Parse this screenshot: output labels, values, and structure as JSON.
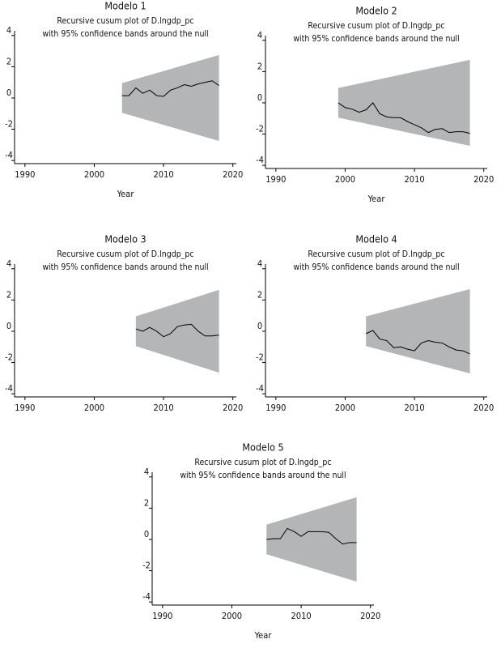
{
  "chart_data": [
    {
      "type": "line",
      "title": "Modelo 1",
      "subtitle": [
        "Recursive cusum plot of D.lngdp_pc",
        "with 95% confidence bands around the null"
      ],
      "xlabel": "Year",
      "x": [
        2004,
        2005,
        2006,
        2007,
        2008,
        2009,
        2010,
        2011,
        2012,
        2013,
        2014,
        2015,
        2016,
        2017,
        2018
      ],
      "values": [
        0.15,
        0.15,
        0.65,
        0.3,
        0.5,
        0.15,
        0.1,
        0.5,
        0.65,
        0.85,
        0.75,
        0.9,
        1.0,
        1.1,
        0.8
      ],
      "color": "#000000",
      "band_x": [
        2004,
        2018
      ],
      "band_lower": [
        -0.95,
        -2.75
      ],
      "band_upper": [
        0.95,
        2.75
      ],
      "band_color": "#b3b5b6",
      "xlim": [
        1988.5,
        2020.5
      ],
      "ylim": [
        -4.2,
        4.3
      ],
      "xticks": [
        1990,
        2000,
        2010,
        2020
      ],
      "yticks": [
        4,
        2,
        0,
        -2,
        -4
      ]
    },
    {
      "type": "line",
      "title": "Modelo 2",
      "subtitle": [
        "Recursive cusum plot of D.lngdp_pc",
        "with 95% confidence bands around the null"
      ],
      "xlabel": "Year",
      "x": [
        1999,
        2000,
        2001,
        2002,
        2003,
        2004,
        2005,
        2006,
        2007,
        2008,
        2009,
        2010,
        2011,
        2012,
        2013,
        2014,
        2015,
        2016,
        2017,
        2018
      ],
      "values": [
        0,
        -0.3,
        -0.4,
        -0.6,
        -0.45,
        0,
        -0.7,
        -0.9,
        -0.95,
        -0.95,
        -1.2,
        -1.4,
        -1.6,
        -1.9,
        -1.7,
        -1.65,
        -1.9,
        -1.85,
        -1.85,
        -1.95
      ],
      "color": "#000000",
      "band_x": [
        1999,
        2018
      ],
      "band_lower": [
        -0.95,
        -2.75
      ],
      "band_upper": [
        0.95,
        2.75
      ],
      "band_color": "#b3b5b6",
      "xlim": [
        1988.5,
        2020.5
      ],
      "ylim": [
        -4.2,
        4.3
      ],
      "xticks": [
        1990,
        2000,
        2010,
        2020
      ],
      "yticks": [
        4,
        2,
        0,
        -2,
        -4
      ]
    },
    {
      "type": "line",
      "title": "Modelo 3",
      "subtitle": [
        "Recursive cusum plot of D.lngdp_pc",
        "with 95% confidence bands around the null"
      ],
      "x": [
        2006,
        2007,
        2008,
        2009,
        2010,
        2011,
        2012,
        2013,
        2014,
        2015,
        2016,
        2017,
        2018
      ],
      "values": [
        0.15,
        0,
        0.25,
        0,
        -0.35,
        -0.15,
        0.3,
        0.4,
        0.45,
        0,
        -0.3,
        -0.3,
        -0.25
      ],
      "color": "#000000",
      "band_x": [
        2006,
        2018
      ],
      "band_lower": [
        -0.95,
        -2.65
      ],
      "band_upper": [
        0.95,
        2.65
      ],
      "band_color": "#b3b5b6",
      "xlim": [
        1988.5,
        2020.5
      ],
      "ylim": [
        -4.2,
        4.3
      ],
      "xticks": [
        1990,
        2000,
        2010,
        2020
      ],
      "yticks": [
        4,
        2,
        0,
        -2,
        -4
      ]
    },
    {
      "type": "line",
      "title": "Modelo 4",
      "subtitle": [
        "Recursive cusum plot of D.lngdp_pc",
        "with 95% confidence bands around the null"
      ],
      "x": [
        2003,
        2004,
        2005,
        2006,
        2007,
        2008,
        2009,
        2010,
        2011,
        2012,
        2013,
        2014,
        2015,
        2016,
        2017,
        2018
      ],
      "values": [
        -0.15,
        0.05,
        -0.5,
        -0.6,
        -1.05,
        -1.0,
        -1.15,
        -1.25,
        -0.75,
        -0.6,
        -0.7,
        -0.75,
        -1.0,
        -1.2,
        -1.25,
        -1.45
      ],
      "color": "#000000",
      "band_x": [
        2003,
        2018
      ],
      "band_lower": [
        -0.95,
        -2.7
      ],
      "band_upper": [
        0.95,
        2.7
      ],
      "band_color": "#b3b5b6",
      "xlim": [
        1988.5,
        2020.5
      ],
      "ylim": [
        -4.2,
        4.3
      ],
      "xticks": [
        1990,
        2000,
        2010,
        2020
      ],
      "yticks": [
        4,
        2,
        0,
        -2,
        -4
      ]
    },
    {
      "type": "line",
      "title": "Modelo 5",
      "subtitle": [
        "Recursive cusum plot of D.lngdp_pc",
        "with 95% confidence bands around the null"
      ],
      "xlabel": "Year",
      "x": [
        2005,
        2006,
        2007,
        2008,
        2009,
        2010,
        2011,
        2012,
        2013,
        2014,
        2015,
        2016,
        2017,
        2018
      ],
      "values": [
        0,
        0.05,
        0.05,
        0.7,
        0.5,
        0.2,
        0.5,
        0.5,
        0.5,
        0.45,
        0.05,
        -0.3,
        -0.2,
        -0.2
      ],
      "color": "#000000",
      "band_x": [
        2005,
        2018
      ],
      "band_lower": [
        -0.95,
        -2.7
      ],
      "band_upper": [
        0.95,
        2.7
      ],
      "band_color": "#b3b5b6",
      "xlim": [
        1988.5,
        2020.5
      ],
      "ylim": [
        -4.2,
        4.3
      ],
      "xticks": [
        1990,
        2000,
        2010,
        2020
      ],
      "yticks": [
        4,
        2,
        0,
        -2,
        -4
      ]
    }
  ]
}
